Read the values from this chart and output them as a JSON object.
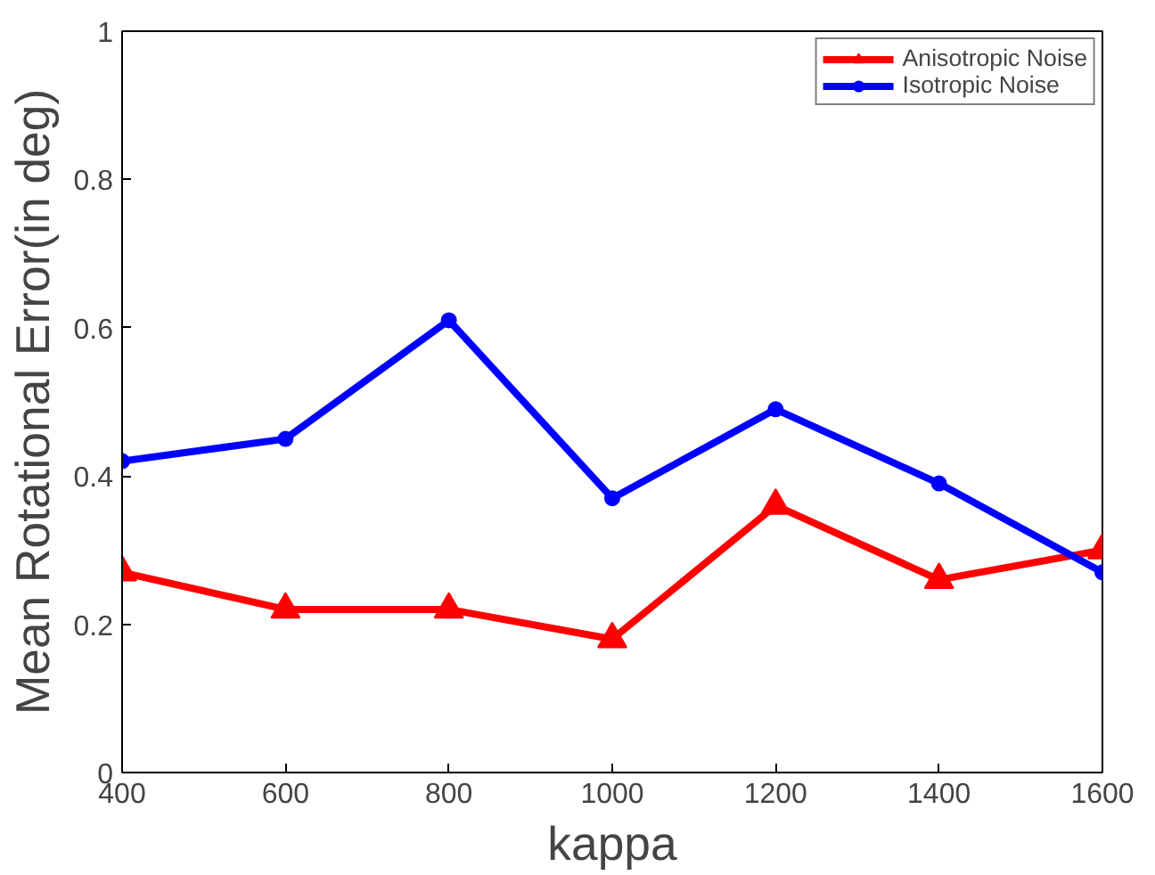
{
  "chart_data": {
    "type": "line",
    "xlabel": "kappa",
    "ylabel": "Mean Rotational Error(in deg)",
    "x": [
      400,
      600,
      800,
      1000,
      1200,
      1400,
      1600
    ],
    "series": [
      {
        "name": "Anisotropic Noise",
        "color": "#ff0000",
        "marker": "triangle",
        "values": [
          0.27,
          0.22,
          0.22,
          0.18,
          0.36,
          0.26,
          0.3
        ]
      },
      {
        "name": "Isotropic Noise",
        "color": "#0000ff",
        "marker": "circle",
        "values": [
          0.42,
          0.45,
          0.61,
          0.37,
          0.49,
          0.39,
          0.27
        ]
      }
    ],
    "xlim": [
      400,
      1600
    ],
    "xticks": [
      400,
      600,
      800,
      1000,
      1200,
      1400,
      1600
    ],
    "ylim": [
      0,
      1
    ],
    "yticks": [
      0,
      0.2,
      0.4,
      0.6,
      0.8,
      1
    ],
    "grid": false,
    "legend": "top right",
    "line_style": "solid"
  }
}
